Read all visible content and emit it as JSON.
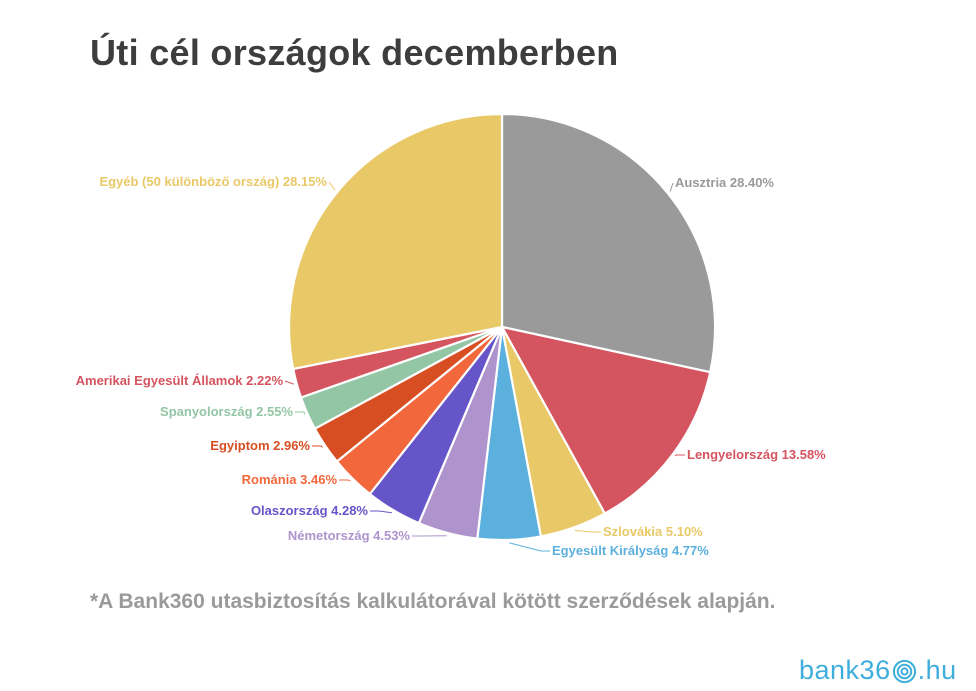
{
  "header": {
    "title": "Úti cél országok decemberben"
  },
  "footnote": "*A Bank360 utasbiztosítás kalkulátorával kötött szerződések alapján.",
  "logo": {
    "prefix": "bank36",
    "suffix": ".hu",
    "color": "#3fAEDC"
  },
  "chart_data": {
    "type": "pie",
    "title": "Úti cél országok decemberben",
    "unit": "%",
    "direction": "clockwise",
    "start_angle_deg": 0,
    "legend": "none",
    "label_format": "{label} {value}%",
    "slices": [
      {
        "label": "Ausztria",
        "value": 28.4,
        "color": "#9a9a9a"
      },
      {
        "label": "Lengyelország",
        "value": 13.58,
        "color": "#d4545f"
      },
      {
        "label": "Szlovákia",
        "value": 5.1,
        "color": "#e9c867"
      },
      {
        "label": "Egyesült Királyság",
        "value": 4.77,
        "color": "#5cb0dd"
      },
      {
        "label": "Németország",
        "value": 4.53,
        "color": "#ae93cc"
      },
      {
        "label": "Olaszország",
        "value": 4.28,
        "color": "#6655c8"
      },
      {
        "label": "Románia",
        "value": 3.46,
        "color": "#f2683c"
      },
      {
        "label": "Egyiptom",
        "value": 2.96,
        "color": "#d64e22"
      },
      {
        "label": "Spanyolország",
        "value": 2.55,
        "color": "#93c6a4"
      },
      {
        "label": "Amerikai Egyesült Államok",
        "value": 2.22,
        "color": "#d4545f"
      },
      {
        "label": "Egyéb (50 különböző ország)",
        "value": 28.15,
        "color": "#e9c867"
      }
    ]
  }
}
